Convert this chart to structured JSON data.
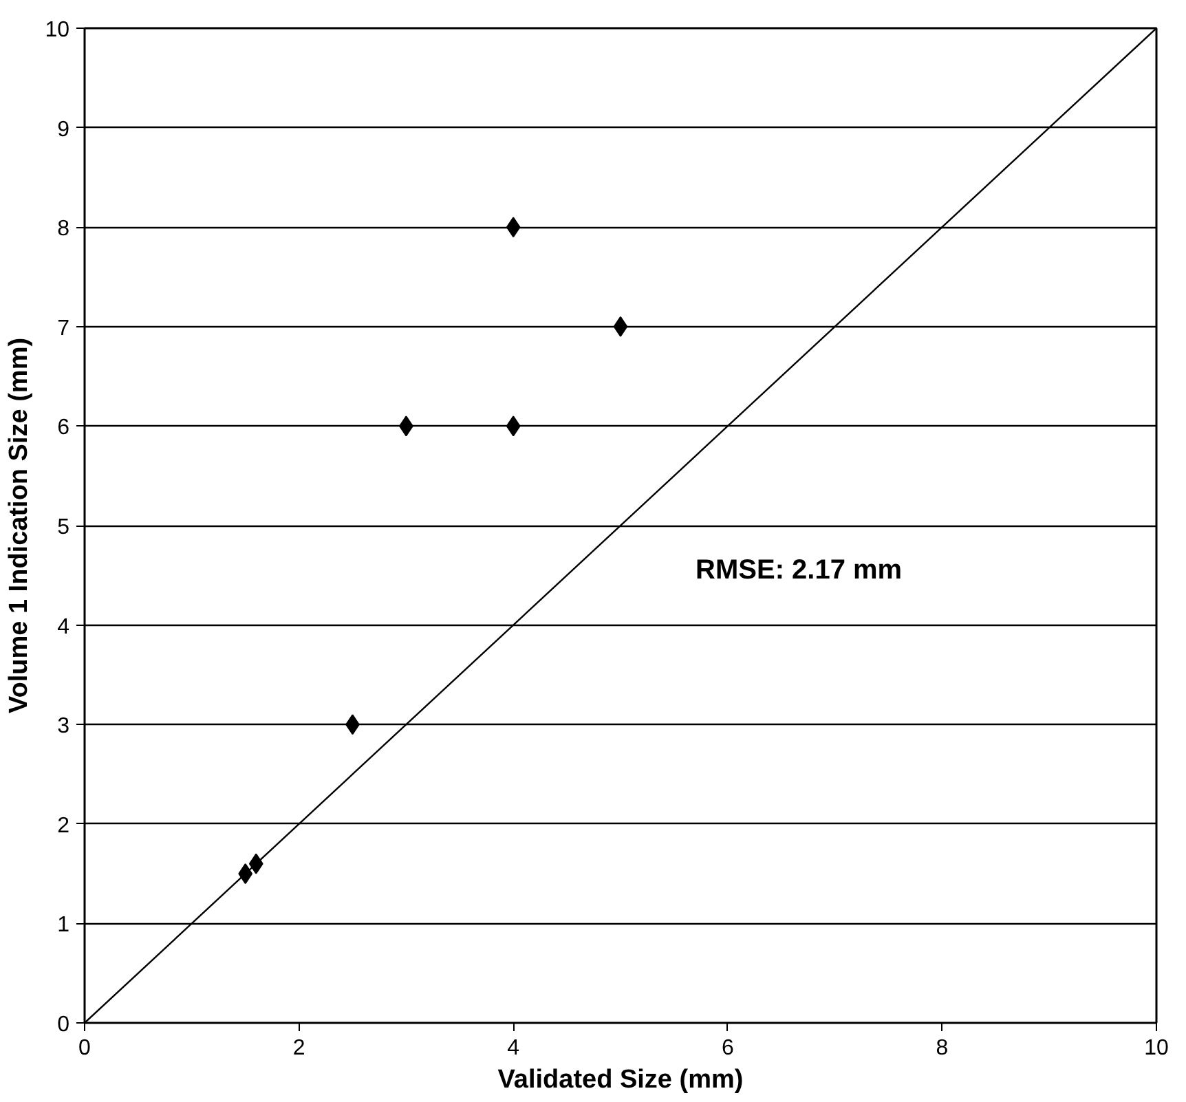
{
  "chart_data": {
    "type": "scatter",
    "xlabel": "Validated Size (mm)",
    "ylabel": "Volume 1 Indication Size (mm)",
    "xlim": [
      0,
      10
    ],
    "ylim": [
      0,
      10
    ],
    "xticks": [
      0,
      2,
      4,
      6,
      8,
      10
    ],
    "yticks": [
      0,
      1,
      2,
      3,
      4,
      5,
      6,
      7,
      8,
      9,
      10
    ],
    "grid": "y",
    "series": [
      {
        "color": "#000000",
        "marker": "diamond",
        "x": [
          4,
          5,
          3,
          4,
          2.5,
          1.5,
          1.6
        ],
        "values": [
          8,
          7,
          6,
          6,
          3,
          1.5,
          1.6
        ]
      },
      {
        "type": "line",
        "color": "#000000",
        "marker": "none",
        "line_style": "solid",
        "x": [
          0,
          10
        ],
        "values": [
          0,
          10
        ]
      }
    ],
    "annotations": [
      "RMSE:  2.17 mm"
    ]
  }
}
